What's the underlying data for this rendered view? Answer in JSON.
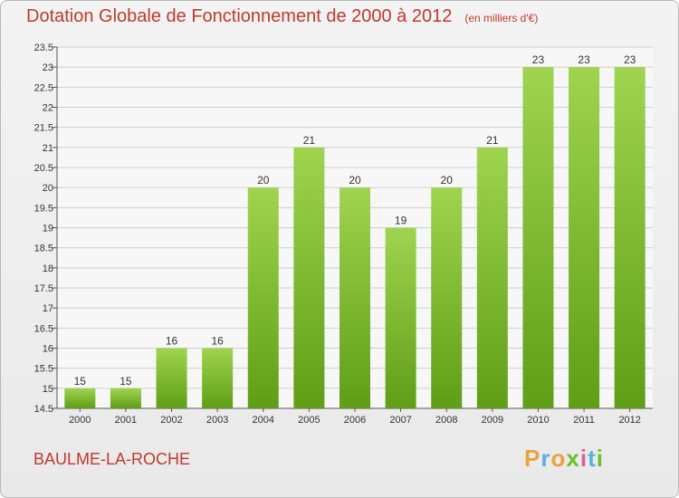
{
  "header": {
    "title": "Dotation Globale de Fonctionnement de 2000 à 2012",
    "subtitle": "(en milliers d'€)"
  },
  "footer": {
    "commune": "BAULME-LA-ROCHE",
    "logo": [
      "P",
      "r",
      "o",
      "x",
      "i",
      "t",
      "i"
    ]
  },
  "colors": {
    "title": "#c0392b",
    "bar_top": "#9fd44f",
    "bar_bottom": "#5f9e16",
    "grid": "#cfcfcf",
    "logo": [
      "#e8a33b",
      "#5bb0e0",
      "#e8a33b",
      "#6fbf2f",
      "#e05a9a",
      "#5bb0e0",
      "#6fbf2f"
    ]
  },
  "chart_data": {
    "type": "bar",
    "title": "Dotation Globale de Fonctionnement de 2000 à 2012",
    "subtitle": "(en milliers d'€)",
    "categories": [
      "2000",
      "2001",
      "2002",
      "2003",
      "2004",
      "2005",
      "2006",
      "2007",
      "2008",
      "2009",
      "2010",
      "2011",
      "2012"
    ],
    "values": [
      15,
      15,
      16,
      16,
      20,
      21,
      20,
      19,
      20,
      21,
      23,
      23,
      23
    ],
    "ylim": [
      14.5,
      23.5
    ],
    "yticks": [
      14.5,
      15,
      15.5,
      16,
      16.5,
      17,
      17.5,
      18,
      18.5,
      19,
      19.5,
      20,
      20.5,
      21,
      21.5,
      22,
      22.5,
      23,
      23.5
    ],
    "xlabel": "",
    "ylabel": "",
    "grid": true
  }
}
